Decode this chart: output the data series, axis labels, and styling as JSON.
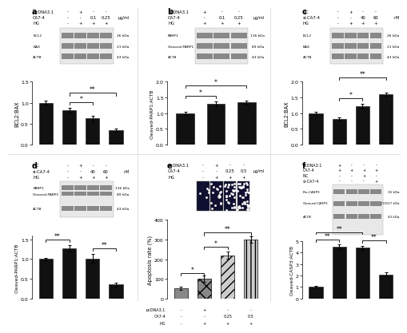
{
  "panel_a": {
    "values": [
      1.0,
      0.82,
      0.62,
      0.35
    ],
    "errors": [
      0.04,
      0.05,
      0.06,
      0.04
    ],
    "ylabel": "BCL2:BAX",
    "ylim": [
      0.0,
      1.5
    ],
    "yticks": [
      0.0,
      0.5,
      1.0,
      1.5
    ],
    "sig_pairs": [
      [
        [
          1,
          2
        ],
        "*"
      ],
      [
        [
          1,
          3
        ],
        "**"
      ]
    ],
    "header_labels": [
      "pcDNA3.1",
      "CA7-4",
      "HG"
    ],
    "header_vals": [
      [
        "-",
        "+",
        "-",
        "-"
      ],
      [
        "-",
        "-",
        "0.1",
        "0.25"
      ],
      [
        "-",
        "+",
        "+",
        "+"
      ]
    ],
    "header_unit": [
      " ",
      "μg/ml",
      " "
    ],
    "band_labels": [
      "BCL2",
      "BAX",
      "ACTB"
    ],
    "kda_labels": [
      "26 kDa",
      "21 kDa",
      "43 kDa"
    ],
    "n_lanes": 4
  },
  "panel_b": {
    "values": [
      1.0,
      1.3,
      1.35
    ],
    "errors": [
      0.05,
      0.07,
      0.06
    ],
    "ylabel": "Cleaved-PARP1:ACTB",
    "ylim": [
      0.0,
      2.0
    ],
    "yticks": [
      0.0,
      0.5,
      1.0,
      1.5,
      2.0
    ],
    "sig_pairs": [
      [
        [
          0,
          1
        ],
        "*"
      ],
      [
        [
          0,
          2
        ],
        "*"
      ]
    ],
    "header_labels": [
      "pcDNA3.1",
      "CA7-4",
      "HG"
    ],
    "header_vals": [
      [
        "+",
        "-",
        "-"
      ],
      [
        "-",
        "0.1",
        "0.25"
      ],
      [
        "+",
        "+",
        "+"
      ]
    ],
    "header_unit": [
      " ",
      "μg/ml",
      " "
    ],
    "band_labels": [
      "PARP1",
      "Cleaved-PARP1",
      "ACTB"
    ],
    "kda_labels": [
      "116 kDa",
      "89 kDa",
      "43 kDa"
    ],
    "n_lanes": 3
  },
  "panel_c": {
    "values": [
      1.0,
      0.82,
      1.22,
      1.6
    ],
    "errors": [
      0.04,
      0.05,
      0.07,
      0.05
    ],
    "ylabel": "BCL2:BAX",
    "ylim": [
      0.0,
      2.0
    ],
    "yticks": [
      0.0,
      0.5,
      1.0,
      1.5,
      2.0
    ],
    "sig_pairs": [
      [
        [
          1,
          2
        ],
        "*"
      ],
      [
        [
          1,
          3
        ],
        "**"
      ]
    ],
    "header_labels": [
      "NC",
      "si-CA7-4",
      "HG"
    ],
    "header_vals": [
      [
        "-",
        "+",
        "-",
        "-"
      ],
      [
        "-",
        "-",
        "40",
        "60"
      ],
      [
        "-",
        "+",
        "+",
        "+"
      ]
    ],
    "header_unit": [
      " ",
      "nM",
      " "
    ],
    "band_labels": [
      "BCL2",
      "BAX",
      "ACTB"
    ],
    "kda_labels": [
      "26 kDa",
      "21 kDa",
      "43 kDa"
    ],
    "n_lanes": 4
  },
  "panel_d": {
    "values": [
      1.0,
      1.28,
      1.02,
      0.35
    ],
    "errors": [
      0.04,
      0.08,
      0.12,
      0.06
    ],
    "ylabel": "Cleaved-PARP1:ACTB",
    "ylim": [
      0.0,
      1.6
    ],
    "yticks": [
      0.0,
      0.5,
      1.0,
      1.5
    ],
    "sig_pairs": [
      [
        [
          0,
          1
        ],
        "**"
      ],
      [
        [
          2,
          3
        ],
        "**"
      ]
    ],
    "header_labels": [
      "NC",
      "si-CA7-4",
      "HG"
    ],
    "header_vals": [
      [
        "-",
        "+",
        "-",
        "-"
      ],
      [
        "-",
        "-",
        "40",
        "60"
      ],
      [
        "-",
        "+",
        "+",
        "+"
      ]
    ],
    "header_unit": [
      " ",
      "nM",
      " "
    ],
    "band_labels": [
      "PARP1/Cleaved-PARP1",
      "ACTB"
    ],
    "kda_labels": [
      "116/89 kDa",
      "43 kDa"
    ],
    "n_lanes": 4,
    "double_band": true
  },
  "panel_e": {
    "values": [
      50,
      100,
      220,
      300
    ],
    "errors": [
      8,
      15,
      18,
      18
    ],
    "ylabel": "Apoptosis rate (%)",
    "ylim": [
      0,
      400
    ],
    "yticks": [
      0,
      100,
      200,
      300,
      400
    ],
    "sig_pairs_e": [
      [
        [
          0,
          1
        ],
        "*"
      ],
      [
        [
          1,
          2
        ],
        "*"
      ],
      [
        [
          1,
          3
        ],
        "**"
      ]
    ],
    "header_labels": [
      "pcDNA3.1",
      "CA7-4",
      "HG"
    ],
    "header_vals": [
      [
        "-",
        "+",
        "-",
        "-"
      ],
      [
        "-",
        "-",
        "0.25",
        "0.5"
      ],
      [
        "-",
        "+",
        "+",
        "+"
      ]
    ],
    "header_unit": [
      " ",
      "μg/ml",
      " "
    ],
    "bar_hatches": [
      "",
      "xx",
      "///",
      "|||"
    ],
    "bar_colors": [
      "#888888",
      "#888888",
      "#cccccc",
      "#cccccc"
    ]
  },
  "panel_f": {
    "values": [
      1.0,
      4.5,
      4.4,
      2.1
    ],
    "errors": [
      0.08,
      0.18,
      0.18,
      0.16
    ],
    "ylabel": "Cleaved-CASP3:ACTB",
    "ylim": [
      0,
      5
    ],
    "yticks": [
      0,
      1,
      2,
      3,
      4,
      5
    ],
    "sig_pairs": [
      [
        [
          0,
          1
        ],
        "**"
      ],
      [
        [
          0,
          2
        ],
        "**"
      ],
      [
        [
          2,
          3
        ],
        "**"
      ]
    ],
    "header_labels": [
      "pcDNA3.1",
      "CA7-4",
      "NC",
      "si-CA7-4"
    ],
    "header_vals": [
      [
        "+",
        "-",
        "-",
        "-"
      ],
      [
        "+",
        "+",
        "+",
        "+"
      ],
      [
        "-",
        "-",
        "+",
        "-"
      ],
      [
        "-",
        "-",
        "-",
        "+"
      ]
    ],
    "band_labels": [
      "Pro-CASP3",
      "Cleaved-CASP3",
      "ACTB"
    ],
    "kda_labels": [
      "35 kDa",
      "}19/17 kDa",
      "43 kDa"
    ],
    "n_lanes": 4
  },
  "bar_color": "#111111",
  "blot_bg": "#e8e8e8",
  "band_color": "#888888",
  "background": "#ffffff",
  "border_color": "#cccccc"
}
